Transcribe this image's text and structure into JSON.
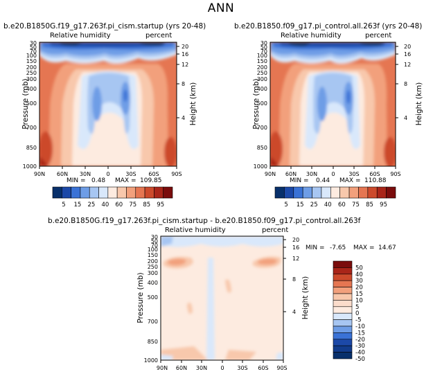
{
  "title": "ANN",
  "panels": [
    {
      "id": "p1",
      "title": "b.e20.B1850G.f19_g17.263f.pi_cism.startup (yrs 20-48)",
      "label_left": "Relative humidity",
      "label_right": "percent",
      "min_label": "MIN =",
      "min_value": "0.48",
      "max_label": "MAX =",
      "max_value": "109.85"
    },
    {
      "id": "p2",
      "title": "b.e20.B1850.f09_g17.pi_control.all.263f (yrs 20-48)",
      "label_left": "Relative humidity",
      "label_right": "percent",
      "min_label": "MIN =",
      "min_value": "0.44",
      "max_label": "MAX =",
      "max_value": "110.88"
    },
    {
      "id": "p3",
      "title": "b.e20.B1850G.f19_g17.263f.pi_cism.startup - b.e20.B1850.f09_g17.pi_control.all.263f",
      "label_left": "Relative humidity",
      "label_right": "percent",
      "min_label": "MIN =",
      "min_value": "-7.65",
      "max_label": "MAX =",
      "max_value": "14.67"
    }
  ],
  "chart_data": [
    {
      "type": "heatmap",
      "title": "b.e20.B1850G.f19_g17.263f.pi_cism.startup (yrs 20-48)",
      "variable": "Relative humidity",
      "units": "percent",
      "xlabel": "",
      "ylabel": "Pressure (mb)",
      "y2label": "Height (km)",
      "x_ticks": [
        "90N",
        "60N",
        "30N",
        "0",
        "30S",
        "60S",
        "90S"
      ],
      "y_ticks": [
        "30",
        "50",
        "70",
        "100",
        "150",
        "200",
        "250",
        "300",
        "400",
        "500",
        "700",
        "850",
        "1000"
      ],
      "y2_ticks": [
        "20",
        "16",
        "12",
        "8",
        "4"
      ],
      "xlim": [
        90,
        -90
      ],
      "ylim": [
        1000,
        30
      ],
      "min": 0.48,
      "max": 109.85
    },
    {
      "type": "heatmap",
      "title": "b.e20.B1850.f09_g17.pi_control.all.263f (yrs 20-48)",
      "variable": "Relative humidity",
      "units": "percent",
      "xlabel": "",
      "ylabel": "Pressure (mb)",
      "y2label": "Height (km)",
      "x_ticks": [
        "90N",
        "60N",
        "30N",
        "0",
        "30S",
        "60S",
        "90S"
      ],
      "y_ticks": [
        "30",
        "50",
        "70",
        "100",
        "150",
        "200",
        "250",
        "300",
        "400",
        "500",
        "700",
        "850",
        "1000"
      ],
      "y2_ticks": [
        "20",
        "16",
        "12",
        "8",
        "4"
      ],
      "xlim": [
        90,
        -90
      ],
      "ylim": [
        1000,
        30
      ],
      "min": 0.44,
      "max": 110.88
    },
    {
      "type": "heatmap",
      "title": "b.e20.B1850G.f19_g17.263f.pi_cism.startup - b.e20.B1850.f09_g17.pi_control.all.263f",
      "variable": "Relative humidity",
      "units": "percent",
      "xlabel": "",
      "ylabel": "Pressure (mb)",
      "y2label": "Height (km)",
      "x_ticks": [
        "90N",
        "60N",
        "30N",
        "0",
        "30S",
        "60S",
        "90S"
      ],
      "y_ticks": [
        "30",
        "50",
        "70",
        "100",
        "150",
        "200",
        "250",
        "300",
        "400",
        "500",
        "700",
        "850",
        "1000"
      ],
      "y2_ticks": [
        "20",
        "16",
        "12",
        "8",
        "4"
      ],
      "xlim": [
        90,
        -90
      ],
      "ylim": [
        1000,
        30
      ],
      "min": -7.65,
      "max": 14.67
    }
  ],
  "colorbar_main": {
    "labels": [
      "5",
      "15",
      "25",
      "40",
      "60",
      "75",
      "85",
      "95"
    ],
    "colors": [
      "#08306b",
      "#1c49a8",
      "#3a72d6",
      "#6e9de6",
      "#a7c6f2",
      "#d9e8fb",
      "#fdebe0",
      "#f8c8ac",
      "#f2a07c",
      "#e57652",
      "#cc4a2c",
      "#a92519",
      "#7a0c0c"
    ]
  },
  "colorbar_diff": {
    "labels": [
      "50",
      "40",
      "30",
      "20",
      "15",
      "10",
      "5",
      "0",
      "-5",
      "-10",
      "-15",
      "-20",
      "-30",
      "-40",
      "-50"
    ],
    "colors": [
      "#7a0c0c",
      "#a92519",
      "#cc4a2c",
      "#e57652",
      "#f2a07c",
      "#f8c8ac",
      "#fbdccb",
      "#fdebe0",
      "#d9e8fb",
      "#a7c6f2",
      "#6e9de6",
      "#3a72d6",
      "#1c49a8",
      "#123c8c",
      "#08306b"
    ]
  }
}
